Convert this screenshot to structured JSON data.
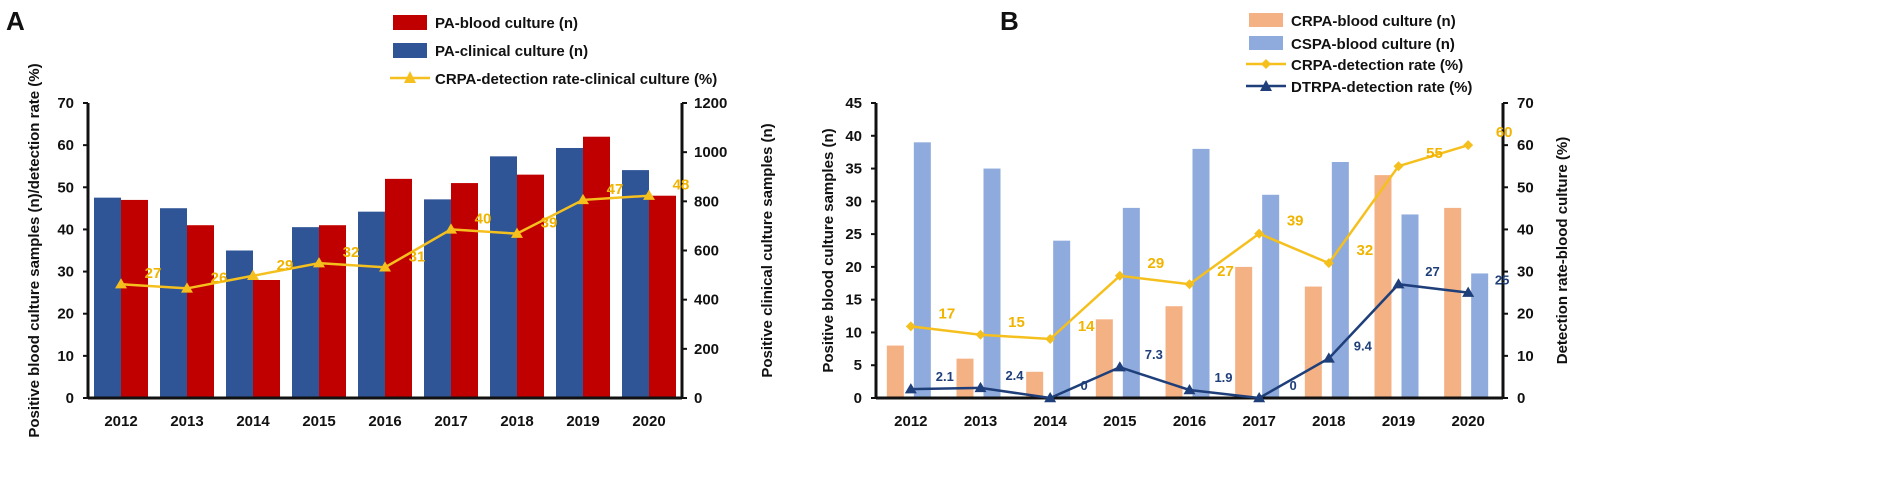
{
  "colors": {
    "pa_blood": "#c00000",
    "pa_clinical": "#2f5597",
    "crpa_line_a": "#f5c01e",
    "crpa_blood": "#f4b183",
    "cspa_blood": "#8faadc",
    "crpa_rate": "#f5c01e",
    "dtrpa_rate": "#1f3f7a",
    "rate_label": "#f0b400",
    "dtrpa_label": "#1f3f7a"
  },
  "panels": {
    "a": {
      "letter": "A"
    },
    "b": {
      "letter": "B"
    }
  },
  "chart_data": [
    {
      "id": "A",
      "type": "bar",
      "categories": [
        "2012",
        "2013",
        "2014",
        "2015",
        "2016",
        "2017",
        "2018",
        "2019",
        "2020"
      ],
      "ylabel_left": "Positive blood culture samples (n)/detection rate (%)",
      "ylabel_right": "Positive clinical culture samples (n)",
      "ylim_left": [
        0,
        70
      ],
      "yticks_left": [
        0,
        10,
        20,
        30,
        40,
        50,
        60,
        70
      ],
      "ylim_right": [
        0,
        1200
      ],
      "yticks_right": [
        0,
        200,
        400,
        600,
        800,
        1000,
        1200
      ],
      "legend_position": "top-center",
      "series": [
        {
          "name": "PA-blood culture (n)",
          "kind": "bar",
          "axis": "left",
          "values": [
            47,
            41,
            28,
            41,
            52,
            51,
            53,
            62,
            48
          ]
        },
        {
          "name": "PA-clinical culture (n)",
          "kind": "bar",
          "axis": "right",
          "values": [
            815,
            772,
            600,
            695,
            758,
            808,
            983,
            1017,
            927
          ]
        },
        {
          "name": "CRPA-detection rate-clinical culture (%)",
          "kind": "line",
          "axis": "left",
          "values": [
            27,
            26,
            29,
            32,
            31,
            40,
            39,
            47,
            48
          ],
          "labels": [
            "27",
            "26",
            "29",
            "32",
            "31",
            "40",
            "39",
            "47",
            "48"
          ]
        }
      ]
    },
    {
      "id": "B",
      "type": "bar",
      "categories": [
        "2012",
        "2013",
        "2014",
        "2015",
        "2016",
        "2017",
        "2018",
        "2019",
        "2020"
      ],
      "ylabel_left": "Positive blood culture samples (n)",
      "ylabel_right": "Detection rate-blood culture  (%)",
      "ylim_left": [
        0,
        45
      ],
      "yticks_left": [
        0,
        5,
        10,
        15,
        20,
        25,
        30,
        35,
        40,
        45
      ],
      "ylim_right": [
        0,
        70
      ],
      "yticks_right": [
        0,
        10,
        20,
        30,
        40,
        50,
        60,
        70
      ],
      "legend_position": "top-right",
      "series": [
        {
          "name": "CRPA-blood culture (n)",
          "kind": "bar",
          "axis": "left",
          "values": [
            8,
            6,
            4,
            12,
            14,
            20,
            17,
            34,
            29
          ]
        },
        {
          "name": "CSPA-blood culture (n)",
          "kind": "bar",
          "axis": "left",
          "values": [
            39,
            35,
            24,
            29,
            38,
            31,
            36,
            28,
            19
          ]
        },
        {
          "name": "CRPA-detection rate (%)",
          "kind": "line",
          "axis": "right",
          "values": [
            17,
            15,
            14,
            29,
            27,
            39,
            32,
            55,
            60
          ],
          "labels": [
            "17",
            "15",
            "14",
            "29",
            "27",
            "39",
            "32",
            "55",
            "60"
          ]
        },
        {
          "name": "DTRPA-detection rate (%)",
          "kind": "line",
          "axis": "right",
          "values": [
            2.1,
            2.4,
            0,
            7.3,
            1.9,
            0,
            9.4,
            27,
            25
          ],
          "labels": [
            "2.1",
            "2.4",
            "0",
            "7.3",
            "1.9",
            "0",
            "9.4",
            "27",
            "25"
          ]
        }
      ]
    }
  ]
}
